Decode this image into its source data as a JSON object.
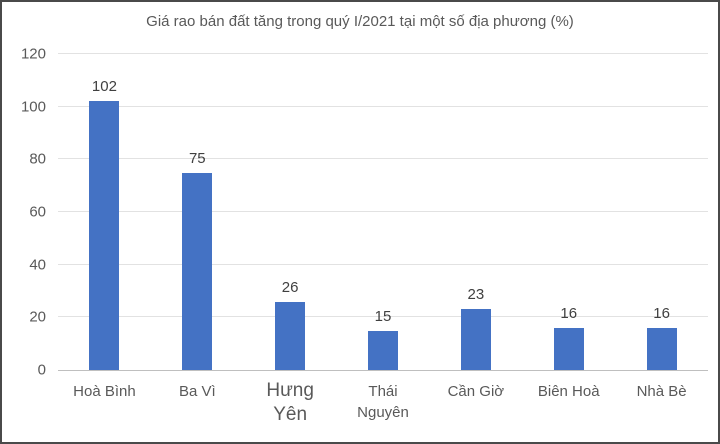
{
  "window": {
    "background": "#FFFFFF",
    "border_color": "#4A4A4A"
  },
  "chart_data": {
    "type": "bar",
    "title": "Giá rao bán đất tăng trong quý I/2021 tại một số địa phương (%)",
    "categories": [
      "Hoà Bình",
      "Ba Vì",
      "Hưng\nYên",
      "Thái\nNguyên",
      "Cần Giờ",
      "Biên Hoà",
      "Nhà Bè"
    ],
    "values": [
      102,
      75,
      26,
      15,
      23,
      16,
      16
    ],
    "data_labels": [
      "102",
      "75",
      "26",
      "15",
      "23",
      "16",
      "16"
    ],
    "xlabel": "",
    "ylabel": "",
    "yticks": [
      0,
      20,
      40,
      60,
      80,
      100,
      120
    ],
    "ylim": [
      0,
      120
    ],
    "grid": true,
    "legend": "none",
    "colors": {
      "bar": "#4472C4",
      "title_text": "#595959",
      "axis_text": "#595959",
      "value_label_text": "#404040",
      "gridline": "#E2E2E2",
      "axis_line": "#BFBFBF"
    }
  }
}
